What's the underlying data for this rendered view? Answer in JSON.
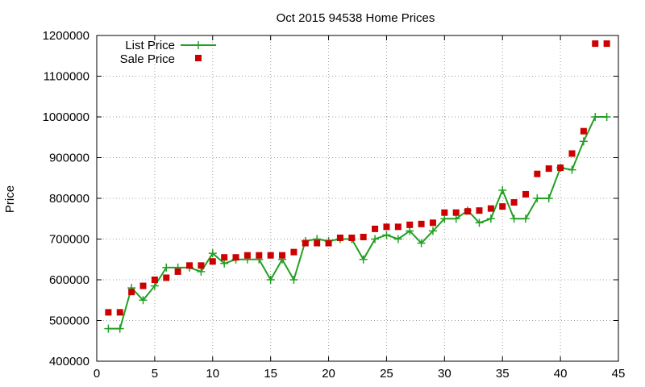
{
  "chart_data": {
    "type": "line",
    "title": "Oct 2015 94538 Home Prices",
    "xlabel": "",
    "ylabel": "Price",
    "xlim": [
      0,
      45
    ],
    "ylim": [
      400000,
      1200000
    ],
    "x_ticks": [
      0,
      5,
      10,
      15,
      20,
      25,
      30,
      35,
      40,
      45
    ],
    "y_ticks": [
      400000,
      500000,
      600000,
      700000,
      800000,
      900000,
      1000000,
      1100000,
      1200000
    ],
    "grid": true,
    "legend_position": "top-left",
    "series": [
      {
        "name": "List Price",
        "style": "line-plus",
        "color": "#22a022",
        "x": [
          1,
          2,
          3,
          4,
          5,
          6,
          7,
          8,
          9,
          10,
          11,
          12,
          13,
          14,
          15,
          16,
          17,
          18,
          19,
          20,
          21,
          22,
          23,
          24,
          25,
          26,
          27,
          28,
          29,
          30,
          31,
          32,
          33,
          34,
          35,
          36,
          37,
          38,
          39,
          40,
          41,
          42,
          43,
          44
        ],
        "values": [
          480000,
          480000,
          580000,
          550000,
          585000,
          630000,
          630000,
          630000,
          620000,
          665000,
          640000,
          650000,
          650000,
          650000,
          600000,
          650000,
          600000,
          695000,
          700000,
          695000,
          700000,
          700000,
          650000,
          700000,
          710000,
          700000,
          720000,
          690000,
          720000,
          750000,
          750000,
          770000,
          740000,
          750000,
          820000,
          750000,
          750000,
          800000,
          800000,
          875000,
          870000,
          940000,
          1000000,
          1000000
        ]
      },
      {
        "name": "Sale Price",
        "style": "square-points",
        "color": "#cc0000",
        "x": [
          1,
          2,
          3,
          4,
          5,
          6,
          7,
          8,
          9,
          10,
          11,
          12,
          13,
          14,
          15,
          16,
          17,
          18,
          19,
          20,
          21,
          22,
          23,
          24,
          25,
          26,
          27,
          28,
          29,
          30,
          31,
          32,
          33,
          34,
          35,
          36,
          37,
          38,
          39,
          40,
          41,
          42,
          43,
          44
        ],
        "values": [
          520000,
          520000,
          570000,
          585000,
          600000,
          605000,
          620000,
          635000,
          635000,
          645000,
          655000,
          655000,
          660000,
          660000,
          660000,
          660000,
          668000,
          690000,
          690000,
          690000,
          703000,
          703000,
          705000,
          725000,
          730000,
          730000,
          735000,
          737000,
          740000,
          765000,
          765000,
          768000,
          770000,
          775000,
          780000,
          790000,
          810000,
          860000,
          873000,
          875000,
          910000,
          965000,
          1180000,
          1180000
        ]
      }
    ]
  }
}
